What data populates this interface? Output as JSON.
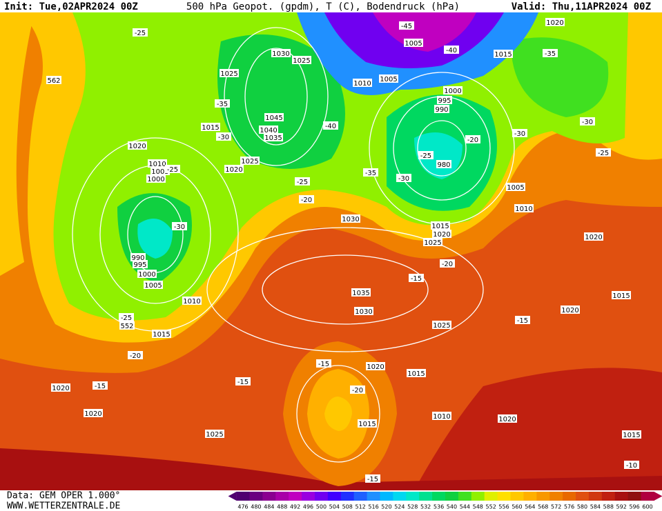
{
  "header": {
    "init": "Init: Tue,02APR2024 00Z",
    "title": "500 hPa Geopot. (gpdm), T (C), Bodendruck (hPa)",
    "valid": "Valid: Thu,11APR2024 00Z"
  },
  "footer": {
    "source": "Data: GEM OPER 1.000°",
    "site": "WWW.WETTERZENTRALE.DE"
  },
  "colorbar": {
    "ticks": [
      476,
      480,
      484,
      488,
      492,
      496,
      500,
      504,
      508,
      512,
      516,
      520,
      524,
      528,
      532,
      536,
      540,
      544,
      548,
      552,
      556,
      560,
      564,
      568,
      572,
      576,
      580,
      584,
      588,
      592,
      596,
      600
    ],
    "colors": [
      "#500070",
      "#6a0080",
      "#8a0090",
      "#a800a8",
      "#c000c0",
      "#9900e0",
      "#7000f0",
      "#4000ff",
      "#2030ff",
      "#2060ff",
      "#2090ff",
      "#00b8ff",
      "#00d8f0",
      "#00e8c8",
      "#00e090",
      "#00d860",
      "#10d040",
      "#40e020",
      "#90f000",
      "#e0f000",
      "#ffe000",
      "#ffc800",
      "#ffb000",
      "#f89800",
      "#f08000",
      "#e86800",
      "#e05010",
      "#d03810",
      "#c02010",
      "#a81010",
      "#901010",
      "#b00040"
    ]
  },
  "isobar_labels": [
    562,
    1030,
    1025,
    1025,
    1045,
    1040,
    1035,
    1015,
    1020,
    1025,
    1020,
    1010,
    1005,
    1000,
    990,
    995,
    1000,
    1005,
    1010,
    1015,
    1020,
    1020,
    1025,
    1030,
    1035,
    1030,
    1025,
    1020,
    1015,
    1010,
    1015,
    1020,
    1015,
    1015,
    1020,
    1020,
    1010,
    1005,
    1015,
    1020,
    1025,
    1010,
    1005,
    1005,
    1000,
    995,
    990,
    980,
    1015,
    1020,
    552
  ],
  "temperature_labels": [
    -25,
    -35,
    -30,
    -25,
    -30,
    -25,
    -20,
    -40,
    -35,
    -30,
    -25,
    -20,
    -45,
    -40,
    -35,
    -30,
    -30,
    -25,
    -20,
    -15,
    -15,
    -25,
    -20,
    -15,
    -15,
    -15,
    -20,
    -15,
    -10
  ]
}
